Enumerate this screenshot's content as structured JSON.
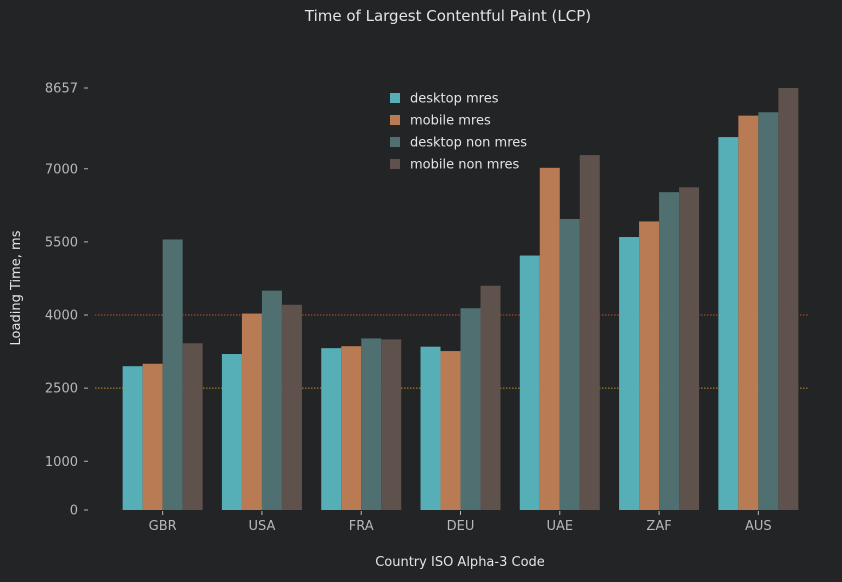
{
  "chart_data": {
    "type": "bar",
    "title": "Time of Largest Contentful Paint (LCP)",
    "xlabel": "Country ISO Alpha-3 Code",
    "ylabel": "Loading Time, ms",
    "categories": [
      "GBR",
      "USA",
      "FRA",
      "DEU",
      "UAE",
      "ZAF",
      "AUS"
    ],
    "yticks": [
      0,
      1000,
      2500,
      4000,
      5500,
      7000,
      8657
    ],
    "ylim": [
      0,
      8657
    ],
    "reference_lines": [
      {
        "value": 2500,
        "color": "#c08a2e"
      },
      {
        "value": 4000,
        "color": "#c0502e"
      }
    ],
    "legend_position": "top-center",
    "grid": false,
    "series": [
      {
        "name": "desktop mres",
        "color": "#56aeb7",
        "values": [
          2950,
          3200,
          3320,
          3350,
          5220,
          5600,
          7650
        ]
      },
      {
        "name": "mobile mres",
        "color": "#b87b53",
        "values": [
          3000,
          4030,
          3360,
          3260,
          7020,
          5920,
          8090
        ]
      },
      {
        "name": "desktop non mres",
        "color": "#4f6f70",
        "values": [
          5550,
          4500,
          3520,
          4140,
          5970,
          6520,
          8160
        ]
      },
      {
        "name": "mobile non mres",
        "color": "#5f524c",
        "values": [
          3420,
          4210,
          3500,
          4600,
          7280,
          6620,
          8657
        ]
      }
    ]
  }
}
